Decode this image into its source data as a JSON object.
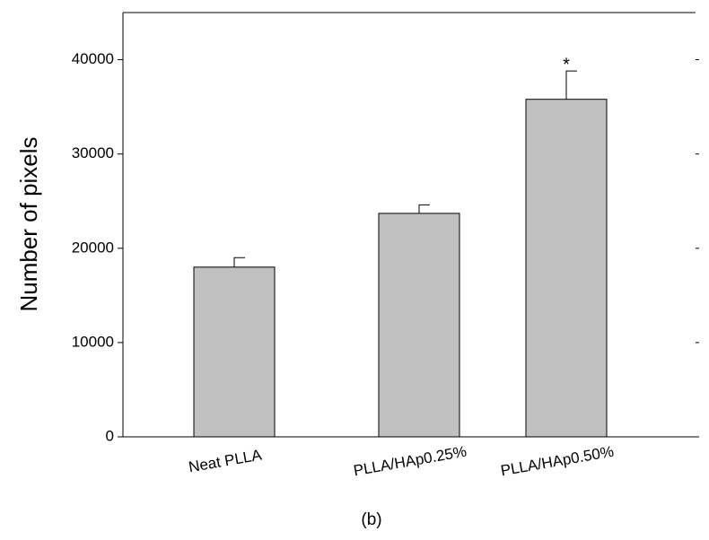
{
  "chart_data": {
    "type": "bar",
    "y_label": "Number of pixels",
    "caption": "(b)",
    "categories": [
      "Neat PLLA",
      "PLLA/HAp0.25%",
      "PLLA/HAp0.50%"
    ],
    "values": [
      18000,
      23700,
      35800
    ],
    "errors": [
      1000,
      900,
      3000
    ],
    "annotations": [
      {
        "text": "*",
        "category": 2
      }
    ],
    "color": "#c0c0c0",
    "ylim": [
      0,
      45000
    ],
    "yticks": [
      0,
      10000,
      20000,
      30000,
      40000
    ],
    "grid": false
  }
}
